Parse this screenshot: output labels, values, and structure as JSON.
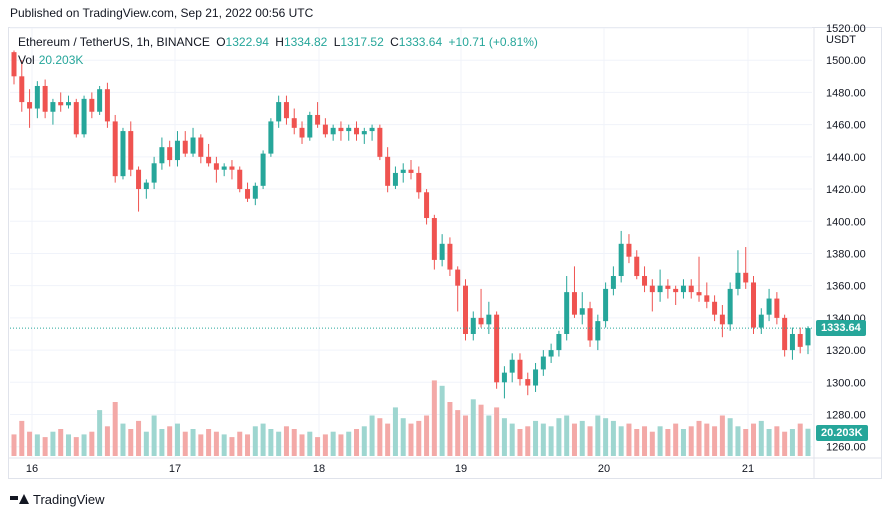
{
  "header": {
    "published": "Published on TradingView.com, Sep 21, 2022 00:56 UTC"
  },
  "legend": {
    "symbol": "Ethereum / TetherUS, 1h, BINANCE",
    "open_label": "O",
    "open": "1322.94",
    "high_label": "H",
    "high": "1334.82",
    "low_label": "L",
    "low": "1317.52",
    "close_label": "C",
    "close": "1333.64",
    "change": "+10.71 (+0.81%)",
    "vol_label": "Vol",
    "vol_value": "20.203K"
  },
  "axis": {
    "currency": "USDT"
  },
  "tags": {
    "price": "1333.64",
    "volume": "20.203K"
  },
  "footer": {
    "brand": "TradingView"
  },
  "colors": {
    "up": "#26a69a",
    "down": "#ef5350",
    "up_volume": "#9ed6d0",
    "down_volume": "#f3a9a7",
    "grid": "#f0f3fa",
    "text": "#131722"
  },
  "chart_data": {
    "type": "candlestick",
    "title": "Ethereum / TetherUS, 1h, BINANCE",
    "price_ticks": [
      1260,
      1280,
      1300,
      1320,
      1340,
      1360,
      1380,
      1400,
      1420,
      1440,
      1460,
      1480,
      1500,
      1520
    ],
    "price_range": [
      1253,
      1520
    ],
    "x_ticks": [
      "16",
      "17",
      "18",
      "19",
      "20",
      "21"
    ],
    "last_price": 1333.64,
    "last_volume_k": 20.203,
    "grid": true,
    "candles": [
      [
        1505,
        1506,
        1485,
        1490
      ],
      [
        1490,
        1500,
        1468,
        1474
      ],
      [
        1474,
        1482,
        1458,
        1470
      ],
      [
        1470,
        1487,
        1464,
        1484
      ],
      [
        1484,
        1488,
        1464,
        1468
      ],
      [
        1468,
        1476,
        1460,
        1474
      ],
      [
        1474,
        1480,
        1468,
        1472
      ],
      [
        1472,
        1478,
        1470,
        1474
      ],
      [
        1474,
        1476,
        1452,
        1454
      ],
      [
        1454,
        1478,
        1452,
        1476
      ],
      [
        1476,
        1480,
        1464,
        1468
      ],
      [
        1468,
        1484,
        1466,
        1482
      ],
      [
        1482,
        1486,
        1458,
        1462
      ],
      [
        1462,
        1466,
        1424,
        1428
      ],
      [
        1428,
        1458,
        1426,
        1456
      ],
      [
        1456,
        1462,
        1428,
        1432
      ],
      [
        1432,
        1434,
        1406,
        1420
      ],
      [
        1420,
        1426,
        1414,
        1424
      ],
      [
        1424,
        1440,
        1420,
        1436
      ],
      [
        1436,
        1452,
        1432,
        1446
      ],
      [
        1446,
        1450,
        1434,
        1438
      ],
      [
        1438,
        1456,
        1434,
        1450
      ],
      [
        1450,
        1456,
        1440,
        1442
      ],
      [
        1442,
        1458,
        1440,
        1452
      ],
      [
        1452,
        1454,
        1436,
        1440
      ],
      [
        1440,
        1448,
        1434,
        1436
      ],
      [
        1436,
        1440,
        1424,
        1432
      ],
      [
        1432,
        1436,
        1428,
        1434
      ],
      [
        1434,
        1438,
        1426,
        1432
      ],
      [
        1432,
        1434,
        1418,
        1420
      ],
      [
        1420,
        1424,
        1412,
        1414
      ],
      [
        1414,
        1424,
        1410,
        1422
      ],
      [
        1422,
        1444,
        1420,
        1442
      ],
      [
        1442,
        1464,
        1440,
        1462
      ],
      [
        1462,
        1478,
        1458,
        1474
      ],
      [
        1474,
        1478,
        1460,
        1464
      ],
      [
        1464,
        1470,
        1454,
        1458
      ],
      [
        1458,
        1462,
        1448,
        1452
      ],
      [
        1452,
        1468,
        1450,
        1466
      ],
      [
        1466,
        1474,
        1458,
        1460
      ],
      [
        1460,
        1464,
        1452,
        1454
      ],
      [
        1454,
        1460,
        1450,
        1458
      ],
      [
        1458,
        1462,
        1450,
        1456
      ],
      [
        1456,
        1460,
        1450,
        1458
      ],
      [
        1458,
        1462,
        1450,
        1454
      ],
      [
        1454,
        1458,
        1448,
        1456
      ],
      [
        1456,
        1460,
        1450,
        1458
      ],
      [
        1458,
        1460,
        1438,
        1440
      ],
      [
        1440,
        1446,
        1418,
        1422
      ],
      [
        1422,
        1434,
        1420,
        1430
      ],
      [
        1430,
        1436,
        1424,
        1432
      ],
      [
        1432,
        1438,
        1426,
        1430
      ],
      [
        1430,
        1434,
        1414,
        1418
      ],
      [
        1418,
        1420,
        1398,
        1402
      ],
      [
        1402,
        1404,
        1370,
        1376
      ],
      [
        1376,
        1392,
        1372,
        1386
      ],
      [
        1386,
        1390,
        1366,
        1370
      ],
      [
        1370,
        1372,
        1344,
        1360
      ],
      [
        1360,
        1364,
        1326,
        1330
      ],
      [
        1330,
        1344,
        1326,
        1340
      ],
      [
        1340,
        1358,
        1334,
        1336
      ],
      [
        1336,
        1350,
        1330,
        1342
      ],
      [
        1342,
        1344,
        1296,
        1300
      ],
      [
        1300,
        1310,
        1290,
        1306
      ],
      [
        1306,
        1318,
        1300,
        1314
      ],
      [
        1314,
        1318,
        1298,
        1302
      ],
      [
        1302,
        1306,
        1292,
        1298
      ],
      [
        1298,
        1312,
        1294,
        1308
      ],
      [
        1308,
        1320,
        1304,
        1316
      ],
      [
        1316,
        1324,
        1312,
        1320
      ],
      [
        1320,
        1332,
        1316,
        1330
      ],
      [
        1330,
        1366,
        1326,
        1356
      ],
      [
        1356,
        1372,
        1340,
        1342
      ],
      [
        1342,
        1356,
        1336,
        1346
      ],
      [
        1346,
        1350,
        1322,
        1326
      ],
      [
        1326,
        1342,
        1320,
        1338
      ],
      [
        1338,
        1362,
        1334,
        1358
      ],
      [
        1358,
        1372,
        1354,
        1366
      ],
      [
        1366,
        1394,
        1362,
        1386
      ],
      [
        1386,
        1392,
        1374,
        1378
      ],
      [
        1378,
        1382,
        1364,
        1366
      ],
      [
        1366,
        1372,
        1356,
        1360
      ],
      [
        1360,
        1364,
        1344,
        1356
      ],
      [
        1356,
        1370,
        1350,
        1360
      ],
      [
        1360,
        1364,
        1352,
        1358
      ],
      [
        1358,
        1360,
        1348,
        1356
      ],
      [
        1356,
        1364,
        1352,
        1360
      ],
      [
        1360,
        1364,
        1352,
        1356
      ],
      [
        1356,
        1378,
        1350,
        1354
      ],
      [
        1354,
        1362,
        1346,
        1350
      ],
      [
        1350,
        1354,
        1338,
        1342
      ],
      [
        1342,
        1348,
        1328,
        1336
      ],
      [
        1336,
        1362,
        1332,
        1358
      ],
      [
        1358,
        1382,
        1354,
        1368
      ],
      [
        1368,
        1384,
        1358,
        1362
      ],
      [
        1362,
        1366,
        1330,
        1334
      ],
      [
        1334,
        1346,
        1330,
        1342
      ],
      [
        1342,
        1358,
        1338,
        1352
      ],
      [
        1352,
        1356,
        1336,
        1340
      ],
      [
        1340,
        1342,
        1316,
        1320
      ],
      [
        1320,
        1334,
        1314,
        1330
      ],
      [
        1330,
        1334,
        1318,
        1322
      ],
      [
        1322.94,
        1334.82,
        1317.52,
        1333.64
      ]
    ],
    "volumes_k": [
      16,
      26,
      18,
      16,
      14,
      18,
      20,
      16,
      14,
      16,
      18,
      34,
      22,
      40,
      24,
      20,
      26,
      18,
      30,
      20,
      22,
      24,
      18,
      20,
      16,
      20,
      18,
      16,
      14,
      18,
      16,
      22,
      24,
      20,
      18,
      22,
      20,
      16,
      18,
      14,
      16,
      18,
      16,
      18,
      20,
      22,
      30,
      28,
      24,
      36,
      28,
      24,
      26,
      30,
      56,
      52,
      40,
      34,
      30,
      42,
      38,
      30,
      36,
      28,
      24,
      20,
      22,
      26,
      24,
      22,
      28,
      30,
      24,
      26,
      22,
      30,
      28,
      26,
      22,
      24,
      20,
      22,
      18,
      22,
      20,
      24,
      20,
      22,
      26,
      24,
      22,
      30,
      28,
      22,
      20,
      24,
      26,
      20,
      22,
      18,
      20,
      24,
      20.203
    ]
  }
}
